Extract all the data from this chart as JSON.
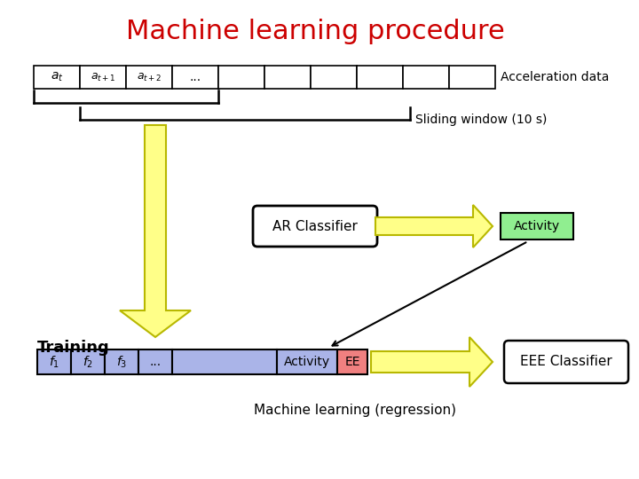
{
  "title": "Machine learning procedure",
  "title_color": "#cc0000",
  "title_fontsize": 22,
  "bg_color": "#ffffff",
  "accel_label": "Acceleration data",
  "sliding_label": "Sliding window (10 s)",
  "ar_classifier_label": "AR Classifier",
  "activity_label": "Activity",
  "training_label": "Training",
  "eee_label": "EEE Classifier",
  "ml_label": "Machine learning (regression)",
  "num_accel_cells": 10,
  "feature_bg": "#aab4e8",
  "ee_cell_bg": "#f08080",
  "activity_box_bg": "#90ee90",
  "yellow_arrow": "#ffff88",
  "yellow_arrow_edge": "#b8b800"
}
